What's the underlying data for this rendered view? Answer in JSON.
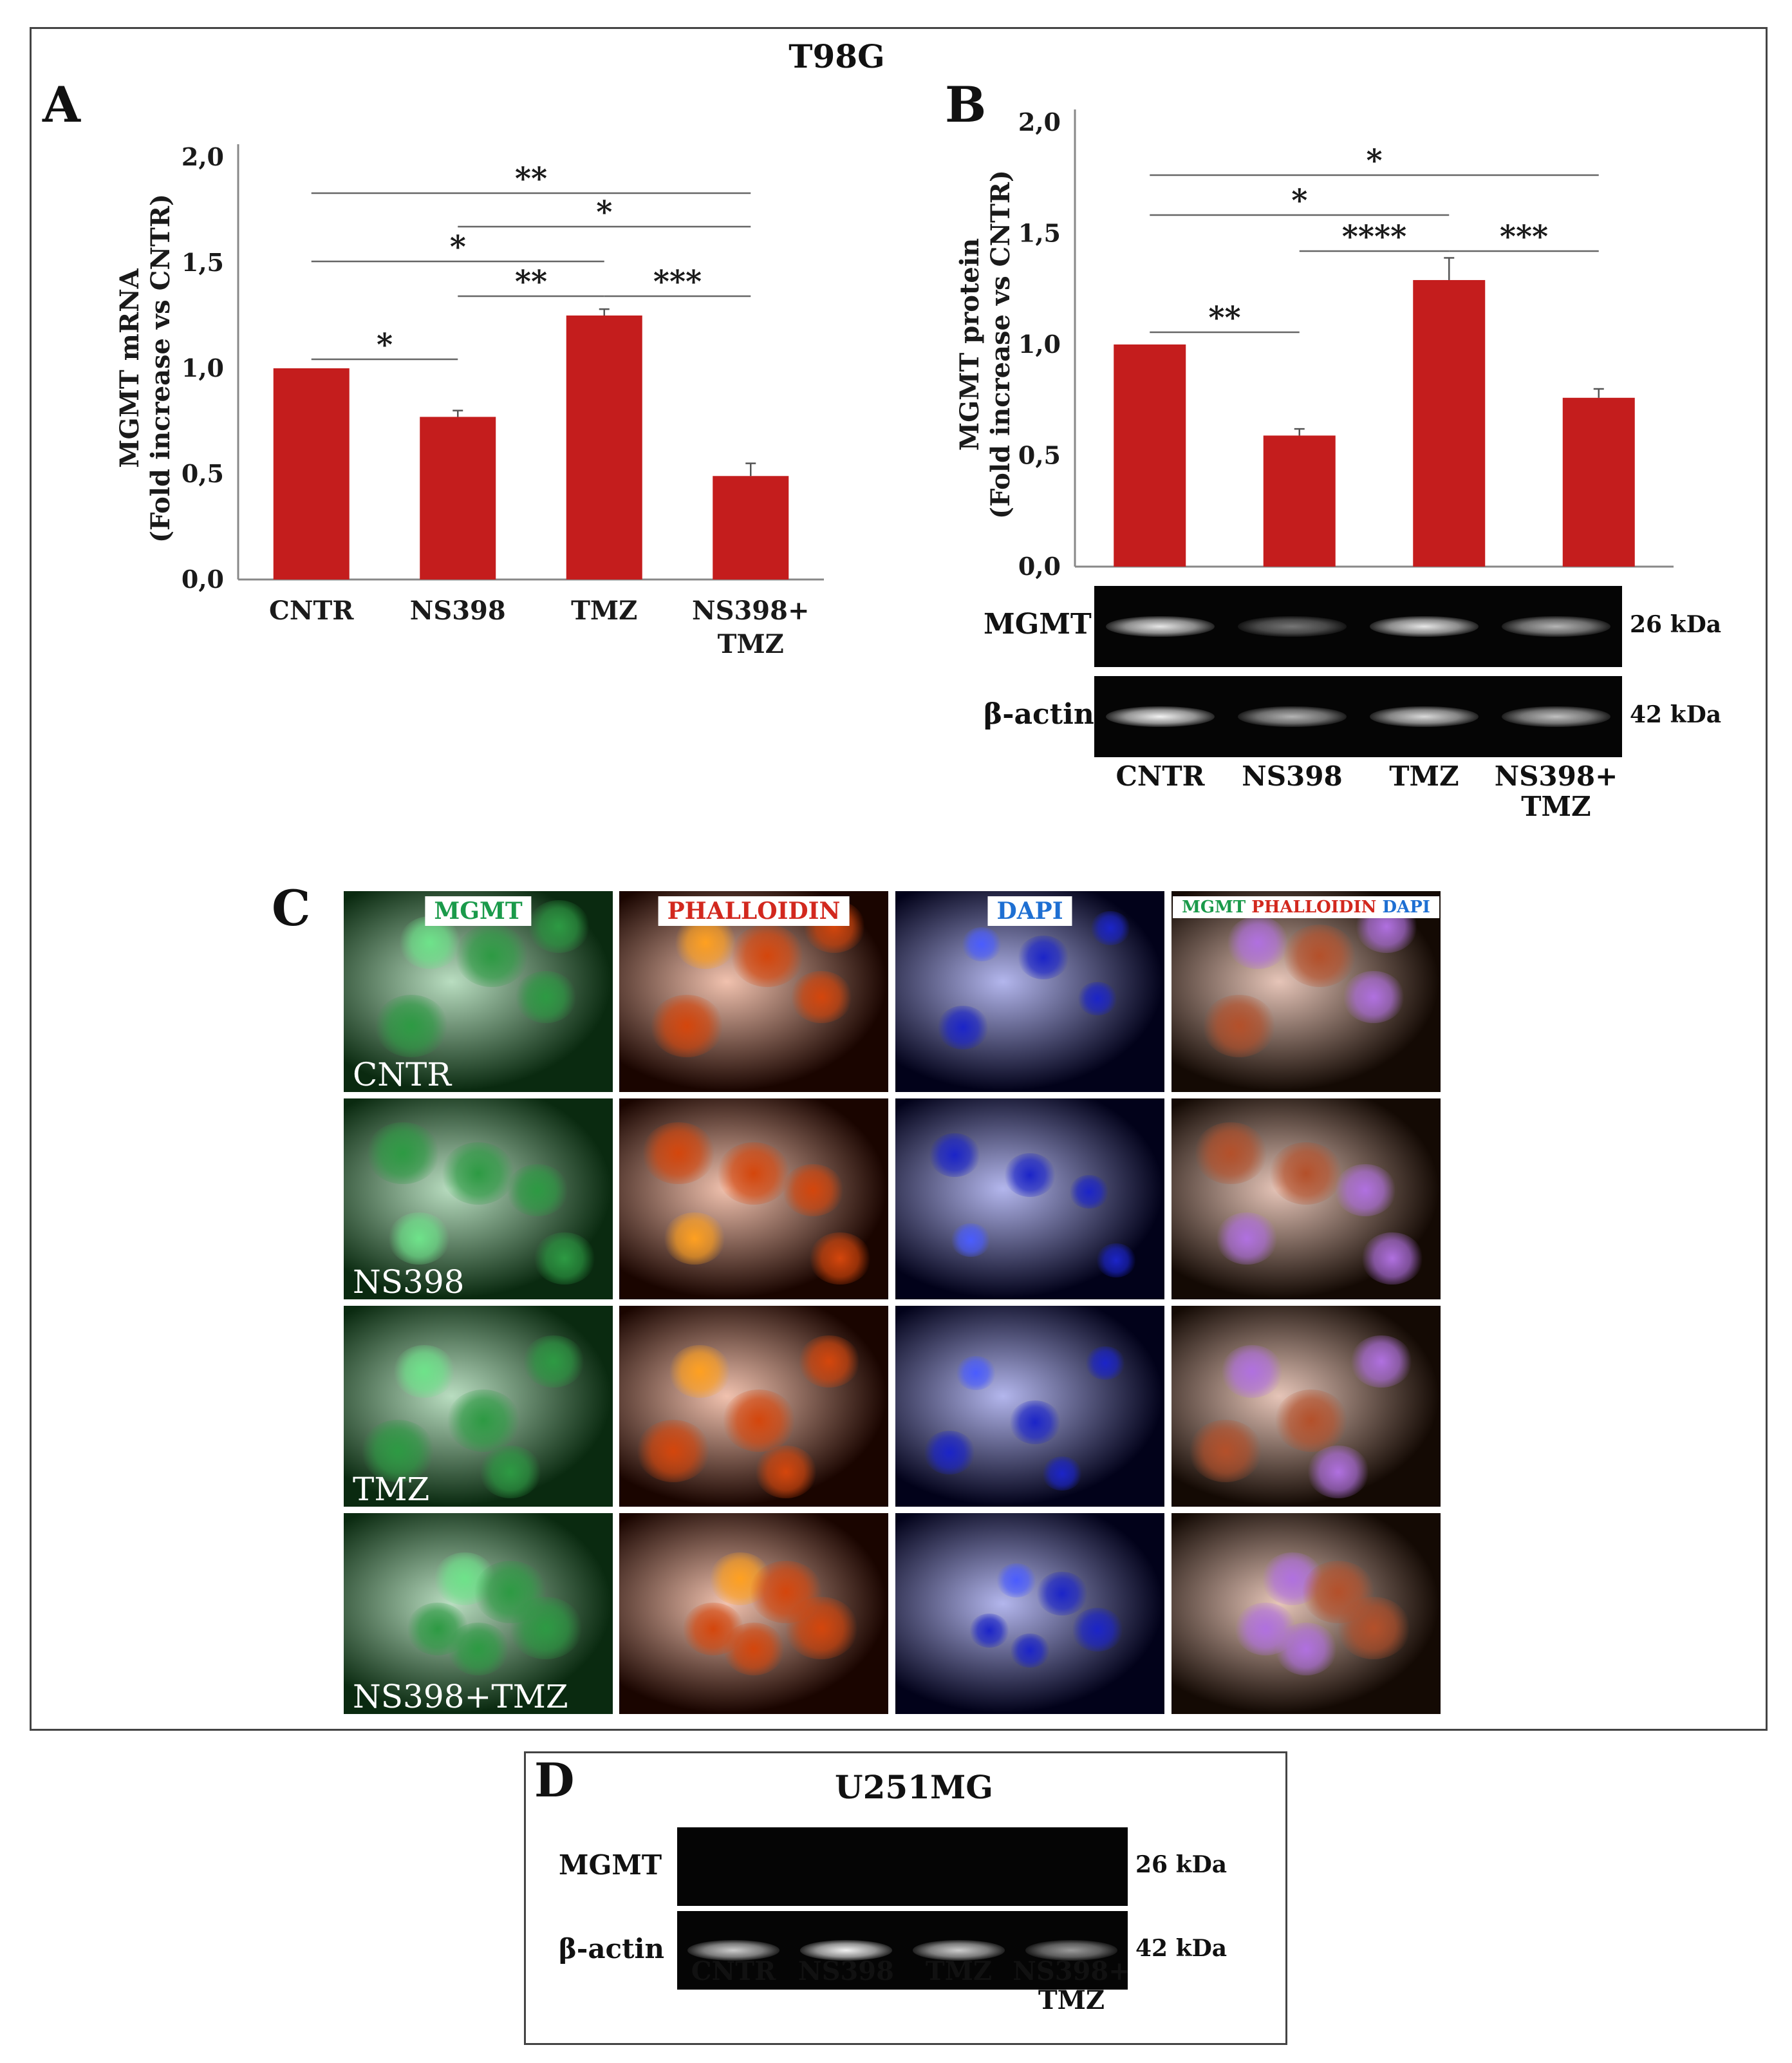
{
  "figure": {
    "main_title": "T98G",
    "panel_letters": {
      "a": "A",
      "b": "B",
      "c": "C",
      "d": "D"
    },
    "panel_d_title": "U251MG"
  },
  "chart_data": [
    {
      "panel": "A",
      "type": "bar",
      "categories": [
        "CNTR",
        "NS398",
        "TMZ",
        "NS398+\nTMZ"
      ],
      "values": [
        1.0,
        0.77,
        1.25,
        0.49
      ],
      "errors": [
        0.0,
        0.03,
        0.03,
        0.06
      ],
      "ylabel_lines": [
        "MGMT mRNA",
        "(Fold increase vs CNTR)"
      ],
      "ylim": [
        0,
        2.0
      ],
      "yticks": [
        "0,0",
        "0,5",
        "1,0",
        "1,5",
        "2,0"
      ],
      "bar_color": "#c41d1d",
      "significance": [
        {
          "from": 0,
          "to": 3,
          "label": "**"
        },
        {
          "from": 1,
          "to": 3,
          "label": "*"
        },
        {
          "from": 0,
          "to": 2,
          "label": "*"
        },
        {
          "from": 1,
          "to": 2,
          "label": "**"
        },
        {
          "from": 2,
          "to": 3,
          "label": "***"
        },
        {
          "from": 0,
          "to": 1,
          "label": "*"
        }
      ]
    },
    {
      "panel": "B",
      "type": "bar",
      "categories": [
        "CNTR",
        "NS398",
        "TMZ",
        "NS398+\nTMZ"
      ],
      "values": [
        1.0,
        0.59,
        1.29,
        0.76
      ],
      "errors": [
        0.0,
        0.03,
        0.1,
        0.04
      ],
      "ylabel_lines": [
        "MGMT protein",
        "(Fold increase vs CNTR)"
      ],
      "ylim": [
        0,
        2.0
      ],
      "yticks": [
        "0,0",
        "0,5",
        "1,0",
        "1,5",
        "2,0"
      ],
      "bar_color": "#c41d1d",
      "significance": [
        {
          "from": 0,
          "to": 3,
          "label": "*"
        },
        {
          "from": 0,
          "to": 2,
          "label": "*"
        },
        {
          "from": 1,
          "to": 2,
          "label": "****"
        },
        {
          "from": 2,
          "to": 3,
          "label": "***"
        },
        {
          "from": 0,
          "to": 1,
          "label": "**"
        }
      ]
    }
  ],
  "blots": {
    "panel_b": {
      "rows": [
        {
          "label": "MGMT",
          "kda": "26 kDa",
          "band_intensities": [
            0.9,
            0.45,
            0.9,
            0.7
          ]
        },
        {
          "label": "β-actin",
          "kda": "42 kDa",
          "band_intensities": [
            0.95,
            0.7,
            0.85,
            0.75
          ]
        }
      ],
      "lanes": [
        "CNTR",
        "NS398",
        "TMZ",
        "NS398+\nTMZ"
      ]
    },
    "panel_d": {
      "rows": [
        {
          "label": "MGMT",
          "kda": "26 kDa",
          "band_intensities": [
            0.0,
            0.0,
            0.0,
            0.0
          ]
        },
        {
          "label": "β-actin",
          "kda": "42 kDa",
          "band_intensities": [
            0.8,
            0.95,
            0.8,
            0.6
          ]
        }
      ],
      "lanes": [
        "CNTR",
        "NS398",
        "TMZ",
        "NS398+\nTMZ"
      ]
    }
  },
  "microscopy": {
    "columns": [
      {
        "tag": "MGMT",
        "tag_color": "#1a9a4a"
      },
      {
        "tag": "PHALLOIDIN",
        "tag_color": "#d2281e"
      },
      {
        "tag": "DAPI",
        "tag_color": "#1e6fd2"
      },
      {
        "tag_parts": [
          {
            "text": "MGMT ",
            "color": "#1a9a4a"
          },
          {
            "text": "PHALLOIDIN ",
            "color": "#d2281e"
          },
          {
            "text": "DAPI",
            "color": "#1e6fd2"
          }
        ]
      }
    ],
    "rows": [
      "CNTR",
      "NS398",
      "TMZ",
      "NS398+TMZ"
    ]
  }
}
